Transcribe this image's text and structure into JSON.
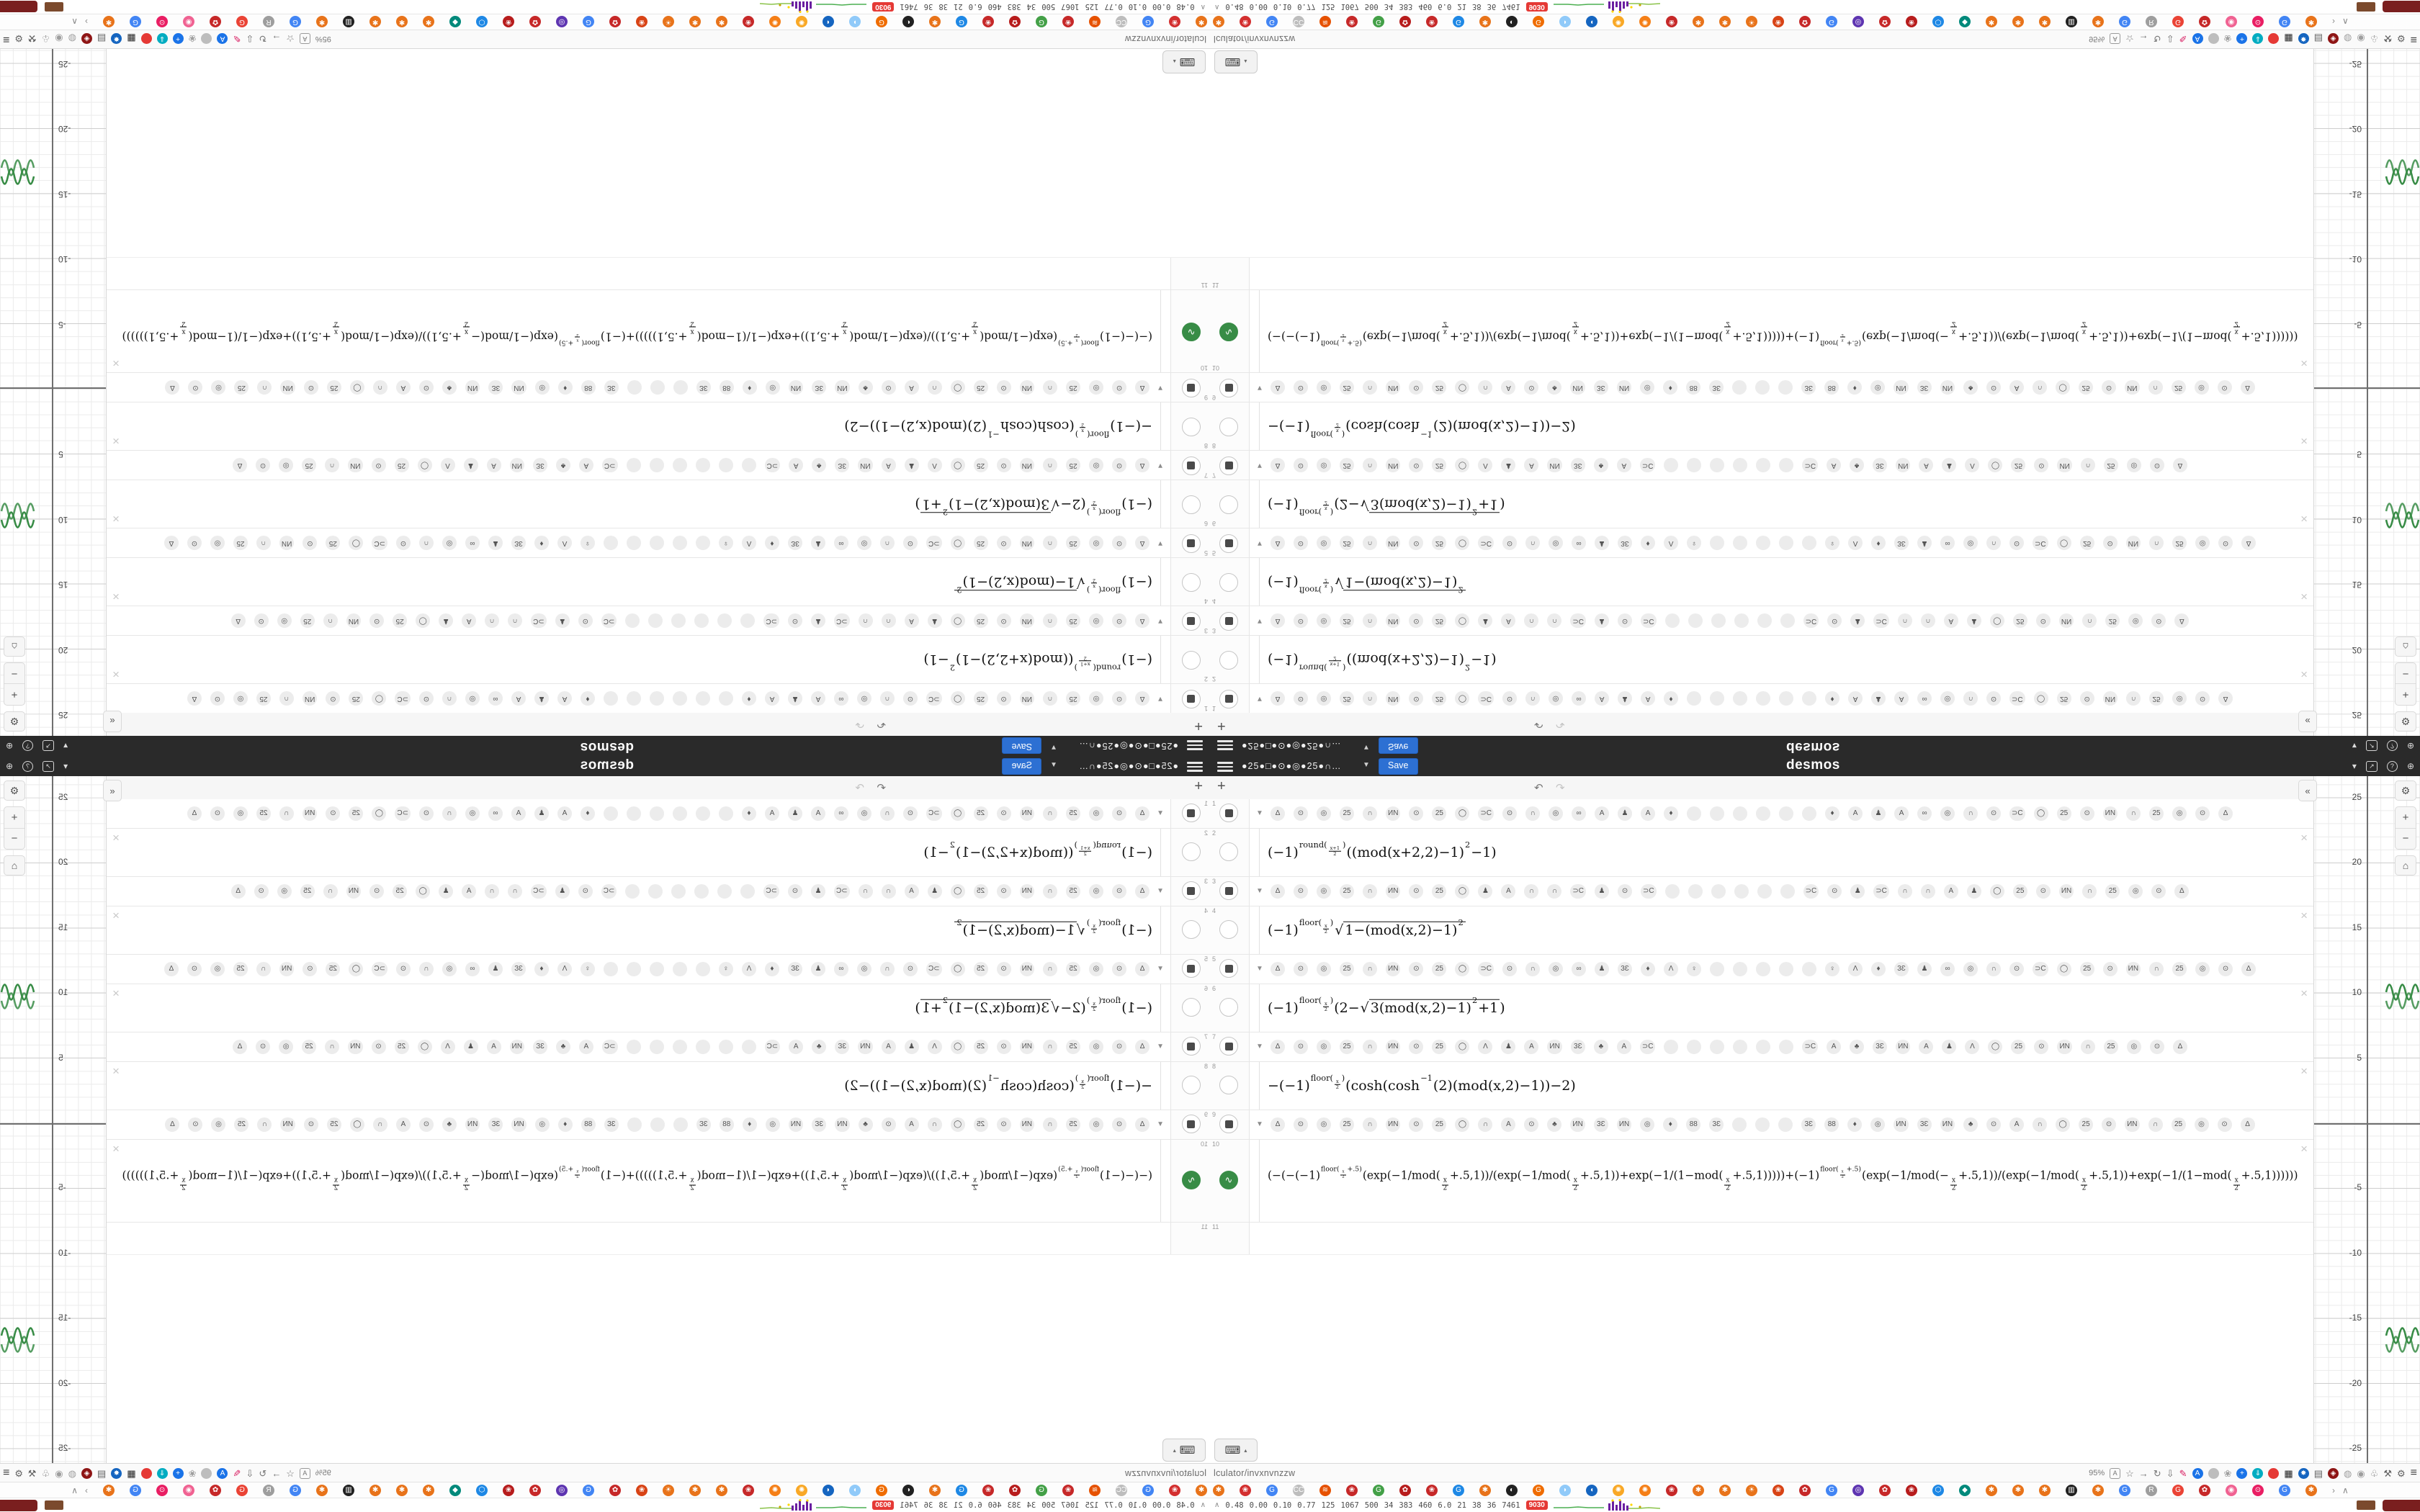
{
  "app": {
    "name": "desmos",
    "accent_green": "#388c46",
    "header_bg": "#2a2a2a",
    "save_blue": "#2d70d3"
  },
  "dheader": {
    "title": "●25●□●⊙●◎●25●∩…",
    "caret": "▼",
    "save_label": "Save",
    "logo": "desmos",
    "account_caret": "▾",
    "share_glyph": "↗",
    "help_glyph": "?",
    "globe_glyph": "⊕"
  },
  "panel": {
    "add_label": "+",
    "undo_glyph": "↶",
    "redo_glyph": "↷",
    "keyboard_glyph": "⌨",
    "keyboard_caret": "▴",
    "rows": [
      {
        "type": "folder",
        "num": "1",
        "pills": "∆ ⊙ ◎ 25 ∩ ИN ⊙ 25 ◯ ⊃C ⊙ ∩ ◎ ∞ A ♟ A ♦ · · · · · · ♦ A ♟ A ∞ ◎ ∩ ⊙ ⊃C ◯ 25 ⊙ ИN ∩ 25 ◎ ⊙ ∆"
      },
      {
        "type": "expr",
        "num": "2",
        "math": "(−1)^{round(#f{x+1|2})}((mod(x+2,2)−1)^{2}−1)"
      },
      {
        "type": "folder",
        "num": "3",
        "pills": "∆ ⊙ ◎ 25 ∩ ИN ⊙ 25 ◯ ♟ A ∩ ∩ ⊃C ♟ ⊙ ⊃C · · · · · · ⊃C ⊙ ♟ ⊃C ∩ ∩ A ♟ ◯ 25 ⊙ ИN ∩ 25 ◎ ⊙ ∆"
      },
      {
        "type": "expr",
        "num": "4",
        "math": "(−1)^{floor(#f{x|2})}√{1−(mod(x,2)−1)^{2}}"
      },
      {
        "type": "folder",
        "num": "5",
        "pills": "∆ ⊙ ◎ 25 ∩ ИN ⊙ 25 ◯ ⊃C ⊙ ∩ ◎ ∞ ♟ 3Ɛ ♦ Ʌ ♀ · · · · · ♀ Ʌ ♦ 3Ɛ ♟ ∞ ◎ ∩ ⊙ ⊃C ◯ 25 ⊙ ИN ∩ 25 ◎ ⊙ ∆"
      },
      {
        "type": "expr",
        "num": "6",
        "math": "(−1)^{floor(#f{x|2})}(2−√{3(mod(x,2)−1)^{2}+1})"
      },
      {
        "type": "folder",
        "num": "7",
        "pills": "∆ ⊙ ◎ 25 ∩ ИN ⊙ 25 ◯ Ʌ ♟ A ИN 3Ɛ ♣ A ⊃C · · · · · · ⊃C A ♣ 3Ɛ ИN A ♟ Ʌ ◯ 25 ⊙ ИN ∩ 25 ◎ ⊙ ∆"
      },
      {
        "type": "expr",
        "num": "8",
        "math": "−(−1)^{floor(#f{x|2})}(cosh(cosh^{−1}(2)(mod(x,2)−1))−2)"
      },
      {
        "type": "folder",
        "num": "9",
        "pills": "∆ ⊙ ◎ 25 ∩ ИN ⊙ 25 ◯ ∩ A ⊙ ♣ ИN 3Ɛ ИN ◎ ♦ 88 3Ɛ · · · 3Ɛ 88 ♦ ◎ ИN 3Ɛ ИN ♣ ⊙ A ∩ ◯ 25 ⊙ ИN ∩ 25 ◎ ⊙ ∆"
      },
      {
        "type": "expr-long",
        "num": "10",
        "icon": "green",
        "math": "(−(−(−1)^{floor(#f{x|2}+.5)}(exp(−1/mod(#f{x|2}+.5,1))/(exp(−1/mod(#f{x|2}+.5,1))+exp(−1/(1−mod(#f{x|2}+.5,1)))))+(−1)^{floor(#f{x|2}+.5)}(exp(−1/mod(−#f{x|2}+.5,1))/(exp(−1/mod(#f{x|2}+.5,1))+exp(−1/(1−mod(#f{x|2}+.5,1))))))"
      },
      {
        "type": "empty",
        "num": "11"
      }
    ]
  },
  "graph": {
    "y_axis_labels": [
      25,
      20,
      15,
      10,
      5,
      -5,
      -10,
      -15,
      -20,
      -25
    ],
    "curve_color": "#388c46",
    "collapse_glyph": "«",
    "wrench_glyph": "⚙",
    "zoom_in": "+",
    "zoom_out": "−",
    "home_glyph": "⌂"
  },
  "browser": {
    "url": "lculator/invxnvnzzw",
    "zoom_level": "95%",
    "toolbar_icons": [
      {
        "n": "translate-page-icon",
        "g": "A",
        "cls": "boxed"
      },
      {
        "n": "bookmark-star-icon",
        "g": "☆"
      },
      {
        "n": "forward-icon",
        "g": "→"
      },
      {
        "n": "reload-icon",
        "g": "↻"
      },
      {
        "n": "download-icon",
        "g": "⇩"
      },
      {
        "n": "marker-extension-icon",
        "g": "✎",
        "c": "#d81b60"
      },
      {
        "n": "translate-ext-icon",
        "g": "A",
        "bg": "#1a73e8",
        "cls": "badge"
      },
      {
        "n": "oval-ext-icon",
        "g": "",
        "bg": "#bdbdbd",
        "cls": "badge"
      },
      {
        "n": "flower-ext-icon",
        "g": "❀",
        "c": "#9e9e9e"
      },
      {
        "n": "plus-ext-icon",
        "g": "+",
        "bg": "#1a73e8",
        "cls": "badge"
      },
      {
        "n": "down-ext-icon",
        "g": "⇓",
        "bg": "#00acc1",
        "cls": "badge"
      },
      {
        "n": "record-ext-icon",
        "g": "",
        "bg": "#e53935",
        "cls": "badge"
      },
      {
        "n": "trash-ext-icon",
        "g": "▦",
        "c": "#212121"
      },
      {
        "n": "pinwheel-ext-icon",
        "g": "✸",
        "bg": "#1565c0",
        "cls": "badge"
      },
      {
        "n": "frame-ext-icon",
        "g": "▤",
        "c": "#616161"
      },
      {
        "n": "shield-ext-icon",
        "g": "◈",
        "bg": "#8e1515",
        "cls": "badge"
      },
      {
        "n": "shield-outline-icon",
        "g": "◍",
        "c": "#9e9e9e"
      },
      {
        "n": "sphere-ext-icon",
        "g": "◉",
        "c": "#9e9e9e"
      },
      {
        "n": "thumb-ext-icon",
        "g": "♧",
        "c": "#757575"
      },
      {
        "n": "wrench-ext-icon",
        "g": "⚒",
        "c": "#616161"
      },
      {
        "n": "settings-gear-icon",
        "g": "⚙",
        "c": "#616161"
      }
    ],
    "menu_glyph": "≡",
    "bookmarks": [
      {
        "g": "✱",
        "bg": "#e8731a"
      },
      {
        "g": "❀",
        "bg": "#d32f2f"
      },
      {
        "g": "G",
        "bg": "#4285f4"
      },
      {
        "g": "CC",
        "bg": "#bdbdbd"
      },
      {
        "g": "≋",
        "bg": "#e65100"
      },
      {
        "g": "❀",
        "bg": "#c62828"
      },
      {
        "g": "G",
        "bg": "#43a047"
      },
      {
        "g": "✿",
        "bg": "#b71c1c"
      },
      {
        "g": "❀",
        "bg": "#c62828"
      },
      {
        "g": "G",
        "bg": "#1e88e5"
      },
      {
        "g": "✱",
        "bg": "#e8731a"
      },
      {
        "g": "◐",
        "bg": "#212121"
      },
      {
        "g": "G",
        "bg": "#ef6c00"
      },
      {
        "g": "◗",
        "bg": "#90caf9"
      },
      {
        "g": "◖",
        "bg": "#1565c0"
      },
      {
        "g": "✺",
        "bg": "#f9a825"
      },
      {
        "g": "✺",
        "bg": "#f57f17"
      },
      {
        "g": "❀",
        "bg": "#c62828"
      },
      {
        "g": "✱",
        "bg": "#e8731a"
      },
      {
        "g": "✱",
        "bg": "#e8731a"
      },
      {
        "g": "☀",
        "bg": "#e8731a"
      },
      {
        "g": "❀",
        "bg": "#d84315"
      },
      {
        "g": "✿",
        "bg": "#c62828"
      },
      {
        "g": "G",
        "bg": "#4285f4"
      },
      {
        "g": "◎",
        "bg": "#5e35b1"
      },
      {
        "g": "✿",
        "bg": "#c62828"
      },
      {
        "g": "❀",
        "bg": "#b71c1c"
      },
      {
        "g": "⬡",
        "bg": "#1e88e5"
      },
      {
        "g": "◆",
        "bg": "#00897b"
      },
      {
        "g": "✱",
        "bg": "#e8731a"
      },
      {
        "g": "✱",
        "bg": "#e8731a"
      },
      {
        "g": "✱",
        "bg": "#e8731a"
      },
      {
        "g": "▥",
        "bg": "#212121"
      },
      {
        "g": "✱",
        "bg": "#e8731a"
      },
      {
        "g": "G",
        "bg": "#4285f4"
      },
      {
        "g": "R",
        "bg": "#9e9e9e"
      },
      {
        "g": "G",
        "bg": "#ea4335"
      },
      {
        "g": "✿",
        "bg": "#c62828"
      },
      {
        "g": "◉",
        "bg": "#f06292"
      },
      {
        "g": "⊙",
        "bg": "#e91e63"
      },
      {
        "g": "G",
        "bg": "#4285f4"
      },
      {
        "g": "✱",
        "bg": "#e8731a"
      }
    ],
    "bookmarks_overflow": "›",
    "bookmarks_collapse": "∧",
    "stats": {
      "caret": "∧",
      "values": [
        "0.48",
        "0.00",
        "0.10",
        "0.77",
        "125",
        "1067",
        "500",
        "34",
        "383",
        "460",
        "6.0",
        "21",
        "38",
        "36",
        "7461"
      ],
      "badge": "9030"
    }
  }
}
